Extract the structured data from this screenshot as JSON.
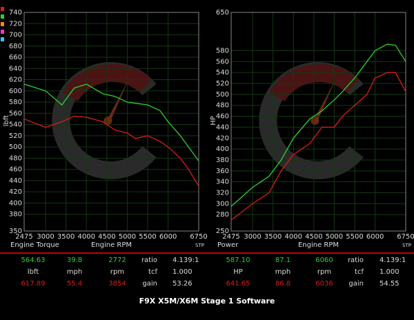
{
  "chart_data": [
    {
      "type": "line",
      "y_label": "lbft",
      "title": "Engine Torque",
      "x_label": "Engine RPM",
      "corner_note": "STP",
      "x": [
        2475,
        3000,
        3400,
        3700,
        4000,
        4400,
        4700,
        5000,
        5200,
        5500,
        5800,
        6000,
        6300,
        6500,
        6750
      ],
      "series": [
        {
          "color": "#2fd12f",
          "values": [
            612,
            600,
            575,
            605,
            612,
            595,
            590,
            580,
            578,
            575,
            565,
            545,
            520,
            500,
            475
          ]
        },
        {
          "color": "#e01a1a",
          "values": [
            550,
            535,
            545,
            555,
            553,
            545,
            530,
            525,
            515,
            520,
            510,
            500,
            480,
            460,
            430
          ]
        }
      ],
      "xlim": [
        2475,
        6750
      ],
      "xticks": [
        2475,
        3000,
        3500,
        4000,
        4500,
        5000,
        5500,
        6000,
        6750
      ],
      "ylim": [
        350,
        740
      ],
      "yticks": [
        350,
        380,
        400,
        420,
        440,
        460,
        480,
        500,
        520,
        540,
        560,
        580,
        600,
        620,
        640,
        660,
        680,
        700,
        720,
        740
      ],
      "grid": true
    },
    {
      "type": "line",
      "y_label": "HP",
      "title": "Power",
      "x_label": "Engine RPM",
      "corner_note": "STP",
      "x": [
        2475,
        3000,
        3400,
        3700,
        4000,
        4400,
        4700,
        5000,
        5200,
        5500,
        5800,
        6000,
        6300,
        6500,
        6750
      ],
      "series": [
        {
          "color": "#2fd12f",
          "values": [
            295,
            330,
            350,
            380,
            420,
            455,
            470,
            490,
            505,
            530,
            560,
            580,
            592,
            590,
            560
          ]
        },
        {
          "color": "#e01a1a",
          "values": [
            270,
            300,
            320,
            360,
            390,
            410,
            440,
            440,
            460,
            480,
            500,
            530,
            540,
            540,
            505
          ]
        }
      ],
      "xlim": [
        2475,
        6750
      ],
      "xticks": [
        2475,
        3000,
        3500,
        4000,
        4500,
        5000,
        5500,
        6000,
        6750
      ],
      "ylim": [
        250,
        650
      ],
      "yticks": [
        250,
        280,
        300,
        320,
        340,
        360,
        380,
        400,
        420,
        440,
        460,
        480,
        500,
        520,
        540,
        560,
        580,
        650
      ],
      "grid": true
    }
  ],
  "readouts": [
    {
      "rows": [
        [
          "564.63",
          "39.8",
          "2772",
          "ratio",
          "4.139:1"
        ],
        [
          "lbft",
          "mph",
          "rpm",
          "tcf",
          "1.000"
        ],
        [
          "617.89",
          "55.4",
          "3854",
          "gain",
          "53.26"
        ]
      ]
    },
    {
      "rows": [
        [
          "587.10",
          "87.1",
          "6060",
          "ratio",
          "4.139:1"
        ],
        [
          "HP",
          "mph",
          "rpm",
          "tcf",
          "1.000"
        ],
        [
          "641.65",
          "86.8",
          "6036",
          "gain",
          "54.55"
        ]
      ]
    }
  ],
  "footer": "F9X X5M/X6M Stage 1 Software"
}
